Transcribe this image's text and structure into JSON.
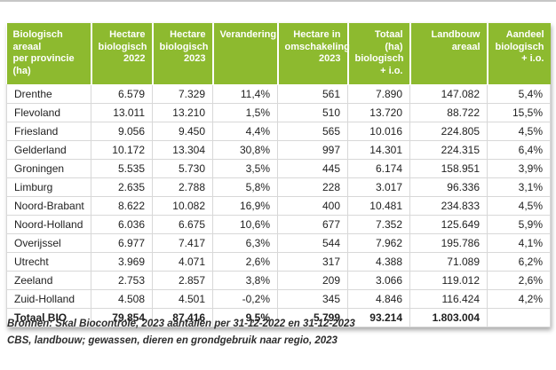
{
  "colors": {
    "header_bg": "#8dba2f",
    "header_text": "#ffffff",
    "grid_line": "#d8d8d8",
    "top_rule": "#c6c6c6"
  },
  "footer": {
    "line1": "Bronnen: Skal Biocontrole, 2023 aantallen per 31-12-2022 en 31-12-2023",
    "line2": "CBS, landbouw; gewassen, dieren en grondgebruik naar regio, 2023"
  },
  "chart_data": {
    "type": "table",
    "title": "Biologisch areaal per provincie (ha)",
    "columns": [
      "Biologisch areaal\nper provincie (ha)",
      "Hectare\nbiologisch\n2022",
      "Hectare\nbiologisch\n2023",
      "Verandering",
      "Hectare in\nomschakeling\n2023",
      "Totaal (ha)\nbiologisch\n+ i.o.",
      "Landbouw\nareaal",
      "Aandeel\nbiologisch\n+ i.o."
    ],
    "rows": [
      [
        "Drenthe",
        "6.579",
        "7.329",
        "11,4%",
        "561",
        "7.890",
        "147.082",
        "5,4%"
      ],
      [
        "Flevoland",
        "13.011",
        "13.210",
        "1,5%",
        "510",
        "13.720",
        "88.722",
        "15,5%"
      ],
      [
        "Friesland",
        "9.056",
        "9.450",
        "4,4%",
        "565",
        "10.016",
        "224.805",
        "4,5%"
      ],
      [
        "Gelderland",
        "10.172",
        "13.304",
        "30,8%",
        "997",
        "14.301",
        "224.315",
        "6,4%"
      ],
      [
        "Groningen",
        "5.535",
        "5.730",
        "3,5%",
        "445",
        "6.174",
        "158.951",
        "3,9%"
      ],
      [
        "Limburg",
        "2.635",
        "2.788",
        "5,8%",
        "228",
        "3.017",
        "96.336",
        "3,1%"
      ],
      [
        "Noord-Brabant",
        "8.622",
        "10.082",
        "16,9%",
        "400",
        "10.481",
        "234.833",
        "4,5%"
      ],
      [
        "Noord-Holland",
        "6.036",
        "6.675",
        "10,6%",
        "677",
        "7.352",
        "125.649",
        "5,9%"
      ],
      [
        "Overijssel",
        "6.977",
        "7.417",
        "6,3%",
        "544",
        "7.962",
        "195.786",
        "4,1%"
      ],
      [
        "Utrecht",
        "3.969",
        "4.071",
        "2,6%",
        "317",
        "4.388",
        "71.089",
        "6,2%"
      ],
      [
        "Zeeland",
        "2.753",
        "2.857",
        "3,8%",
        "209",
        "3.066",
        "119.012",
        "2,6%"
      ],
      [
        "Zuid-Holland",
        "4.508",
        "4.501",
        "-0,2%",
        "345",
        "4.846",
        "116.424",
        "4,2%"
      ]
    ],
    "total_row": [
      "Totaal BIO",
      "79.854",
      "87.416",
      "9,5%",
      "5.799",
      "93.214",
      "1.803.004",
      ""
    ]
  }
}
